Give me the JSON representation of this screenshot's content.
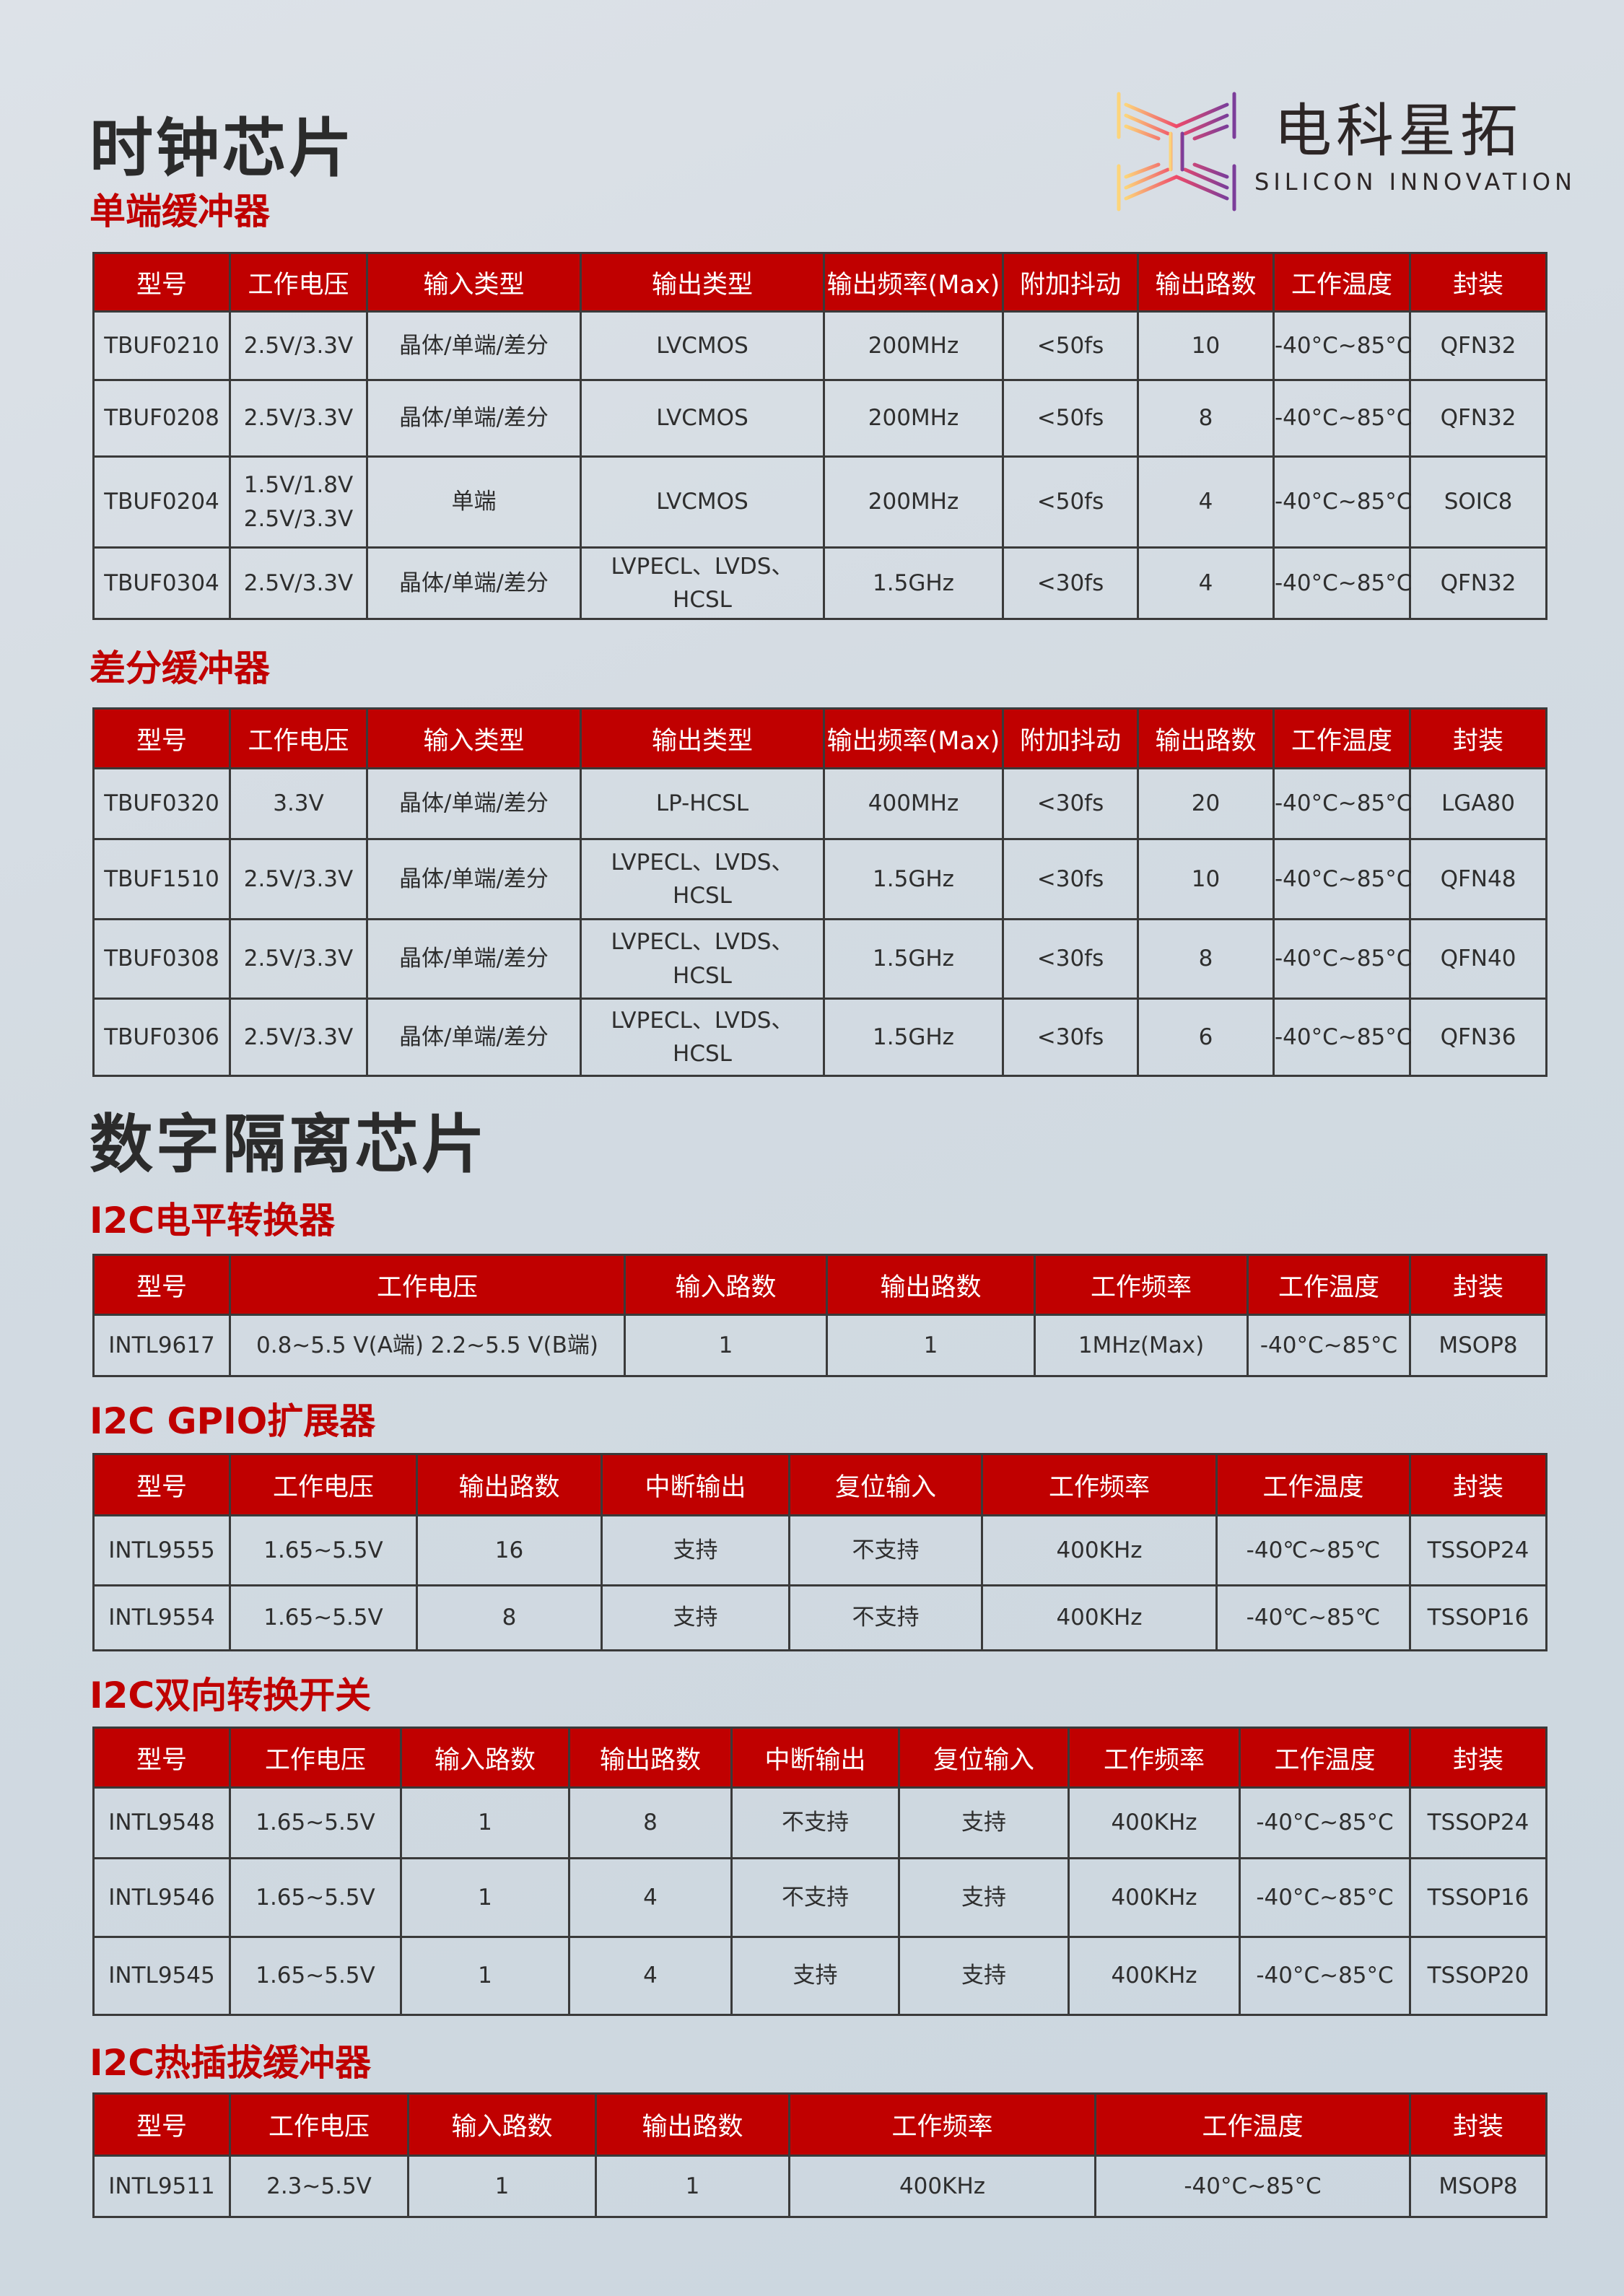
{
  "brand": {
    "name_cn": "电科星拓",
    "name_en": "SILICON INNOVATION"
  },
  "sections": {
    "clock": "时钟芯片",
    "digital_isolation": "数字隔离芯片"
  },
  "tables": [
    {
      "title": "单端缓冲器",
      "headers": [
        "型号",
        "工作电压",
        "输入类型",
        "输出类型",
        "输出频率(Max)",
        "附加抖动",
        "输出路数",
        "工作温度",
        "封装"
      ],
      "rows": [
        [
          "TBUF0210",
          "2.5V/3.3V",
          "晶体/单端/差分",
          "LVCMOS",
          "200MHz",
          "<50fs",
          "10",
          "-40°C~85°C",
          "QFN32"
        ],
        [
          "TBUF0208",
          "2.5V/3.3V",
          "晶体/单端/差分",
          "LVCMOS",
          "200MHz",
          "<50fs",
          "8",
          "-40°C~85°C",
          "QFN32"
        ],
        [
          "TBUF0204",
          "1.5V/1.8V\n2.5V/3.3V",
          "单端",
          "LVCMOS",
          "200MHz",
          "<50fs",
          "4",
          "-40°C~85°C",
          "SOIC8"
        ],
        [
          "TBUF0304",
          "2.5V/3.3V",
          "晶体/单端/差分",
          "LVPECL、LVDS、HCSL",
          "1.5GHz",
          "<30fs",
          "4",
          "-40°C~85°C",
          "QFN32"
        ]
      ]
    },
    {
      "title": "差分缓冲器",
      "headers": [
        "型号",
        "工作电压",
        "输入类型",
        "输出类型",
        "输出频率(Max)",
        "附加抖动",
        "输出路数",
        "工作温度",
        "封装"
      ],
      "rows": [
        [
          "TBUF0320",
          "3.3V",
          "晶体/单端/差分",
          "LP-HCSL",
          "400MHz",
          "<30fs",
          "20",
          "-40°C~85°C",
          "LGA80"
        ],
        [
          "TBUF1510",
          "2.5V/3.3V",
          "晶体/单端/差分",
          "LVPECL、LVDS、HCSL",
          "1.5GHz",
          "<30fs",
          "10",
          "-40°C~85°C",
          "QFN48"
        ],
        [
          "TBUF0308",
          "2.5V/3.3V",
          "晶体/单端/差分",
          "LVPECL、LVDS、HCSL",
          "1.5GHz",
          "<30fs",
          "8",
          "-40°C~85°C",
          "QFN40"
        ],
        [
          "TBUF0306",
          "2.5V/3.3V",
          "晶体/单端/差分",
          "LVPECL、LVDS、HCSL",
          "1.5GHz",
          "<30fs",
          "6",
          "-40°C~85°C",
          "QFN36"
        ]
      ]
    },
    {
      "title": "I2C电平转换器",
      "headers": [
        "型号",
        "工作电压",
        "输入路数",
        "输出路数",
        "工作频率",
        "工作温度",
        "封装"
      ],
      "rows": [
        [
          "INTL9617",
          "0.8~5.5 V(A端)    2.2~5.5 V(B端)",
          "1",
          "1",
          "1MHz(Max)",
          "-40°C~85°C",
          "MSOP8"
        ]
      ]
    },
    {
      "title": "I2C GPIO扩展器",
      "headers": [
        "型号",
        "工作电压",
        "输出路数",
        "中断输出",
        "复位输入",
        "工作频率",
        "工作温度",
        "封装"
      ],
      "rows": [
        [
          "INTL9555",
          "1.65~5.5V",
          "16",
          "支持",
          "不支持",
          "400KHz",
          "-40℃~85℃",
          "TSSOP24"
        ],
        [
          "INTL9554",
          "1.65~5.5V",
          "8",
          "支持",
          "不支持",
          "400KHz",
          "-40℃~85℃",
          "TSSOP16"
        ]
      ]
    },
    {
      "title": "I2C双向转换开关",
      "headers": [
        "型号",
        "工作电压",
        "输入路数",
        "输出路数",
        "中断输出",
        "复位输入",
        "工作频率",
        "工作温度",
        "封装"
      ],
      "rows": [
        [
          "INTL9548",
          "1.65~5.5V",
          "1",
          "8",
          "不支持",
          "支持",
          "400KHz",
          "-40°C~85°C",
          "TSSOP24"
        ],
        [
          "INTL9546",
          "1.65~5.5V",
          "1",
          "4",
          "不支持",
          "支持",
          "400KHz",
          "-40°C~85°C",
          "TSSOP16"
        ],
        [
          "INTL9545",
          "1.65~5.5V",
          "1",
          "4",
          "支持",
          "支持",
          "400KHz",
          "-40°C~85°C",
          "TSSOP20"
        ]
      ]
    },
    {
      "title": "I2C热插拔缓冲器",
      "headers": [
        "型号",
        "工作电压",
        "输入路数",
        "输出路数",
        "工作频率",
        "工作温度",
        "封装"
      ],
      "rows": [
        [
          "INTL9511",
          "2.3~5.5V",
          "1",
          "1",
          "400KHz",
          "-40°C~85°C",
          "MSOP8"
        ]
      ]
    }
  ],
  "colors": {
    "header_bg": "#c00000",
    "subtitle": "#c00000",
    "title": "#2b2b2b"
  }
}
